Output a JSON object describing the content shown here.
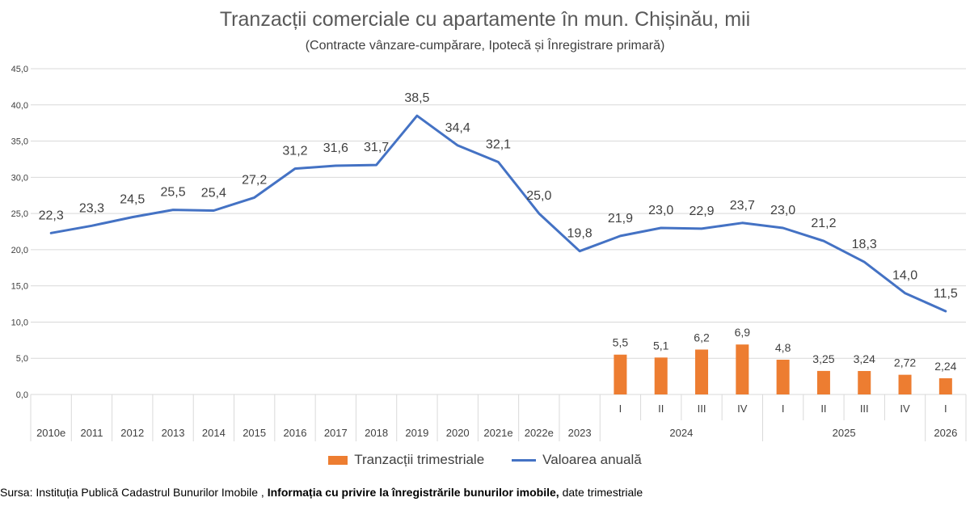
{
  "colors": {
    "bar": "#ED7D31",
    "line": "#4472C4",
    "grid": "#D9D9D9",
    "text": "#404040"
  },
  "chart_data": {
    "type": "bar+line",
    "title": "Tranzacții comerciale cu apartamente în mun. Chișinău, mii",
    "subtitle": "(Contracte vânzare-cumpărare, Ipotecă și Înregistrare primară)",
    "ylim": [
      0,
      45
    ],
    "yticks": [
      "0,0",
      "5,0",
      "10,0",
      "15,0",
      "20,0",
      "25,0",
      "30,0",
      "35,0",
      "40,0",
      "45,0"
    ],
    "categories": [
      "2010e",
      "2011",
      "2012",
      "2013",
      "2014",
      "2015",
      "2016",
      "2017",
      "2018",
      "2019",
      "2020",
      "2021e",
      "2022e",
      "2023",
      "I",
      "II",
      "III",
      "IV",
      "I",
      "II",
      "III",
      "IV",
      "I"
    ],
    "groups": [
      {
        "label": "2024",
        "from": 14,
        "to": 17
      },
      {
        "label": "2025",
        "from": 18,
        "to": 21
      },
      {
        "label": "2026",
        "from": 22,
        "to": 22
      }
    ],
    "series": [
      {
        "name": "Valoarea anuală",
        "type": "line",
        "values": [
          22.3,
          23.3,
          24.5,
          25.5,
          25.4,
          27.2,
          31.2,
          31.6,
          31.7,
          38.5,
          34.4,
          32.1,
          25.0,
          19.8,
          21.9,
          23.0,
          22.9,
          23.7,
          23.0,
          21.2,
          18.3,
          14.0,
          11.5
        ],
        "labels": [
          "22,3",
          "23,3",
          "24,5",
          "25,5",
          "25,4",
          "27,2",
          "31,2",
          "31,6",
          "31,7",
          "38,5",
          "34,4",
          "32,1",
          "25,0",
          "19,8",
          "21,9",
          "23,0",
          "22,9",
          "23,7",
          "23,0",
          "21,2",
          "18,3",
          "14,0",
          "11,5"
        ]
      },
      {
        "name": "Tranzacții trimestriale",
        "type": "bar",
        "values": [
          null,
          null,
          null,
          null,
          null,
          null,
          null,
          null,
          null,
          null,
          null,
          null,
          null,
          null,
          5.5,
          5.1,
          6.2,
          6.9,
          4.8,
          3.25,
          3.24,
          2.72,
          2.24
        ],
        "labels": [
          "",
          "",
          "",
          "",
          "",
          "",
          "",
          "",
          "",
          "",
          "",
          "",
          "",
          "",
          "5,5",
          "5,1",
          "6,2",
          "6,9",
          "4,8",
          "3,25",
          "3,24",
          "2,72",
          "2,24"
        ]
      }
    ],
    "legend": [
      "Tranzacții trimestriale",
      "Valoarea anuală"
    ]
  },
  "source": {
    "prefix": "Sursa: Instituția Publică Cadastrul Bunurilor Imobile ,",
    "bold": "Informația cu privire la înregistrările bunurilor imobile,",
    "suffix": "date trimestriale"
  }
}
